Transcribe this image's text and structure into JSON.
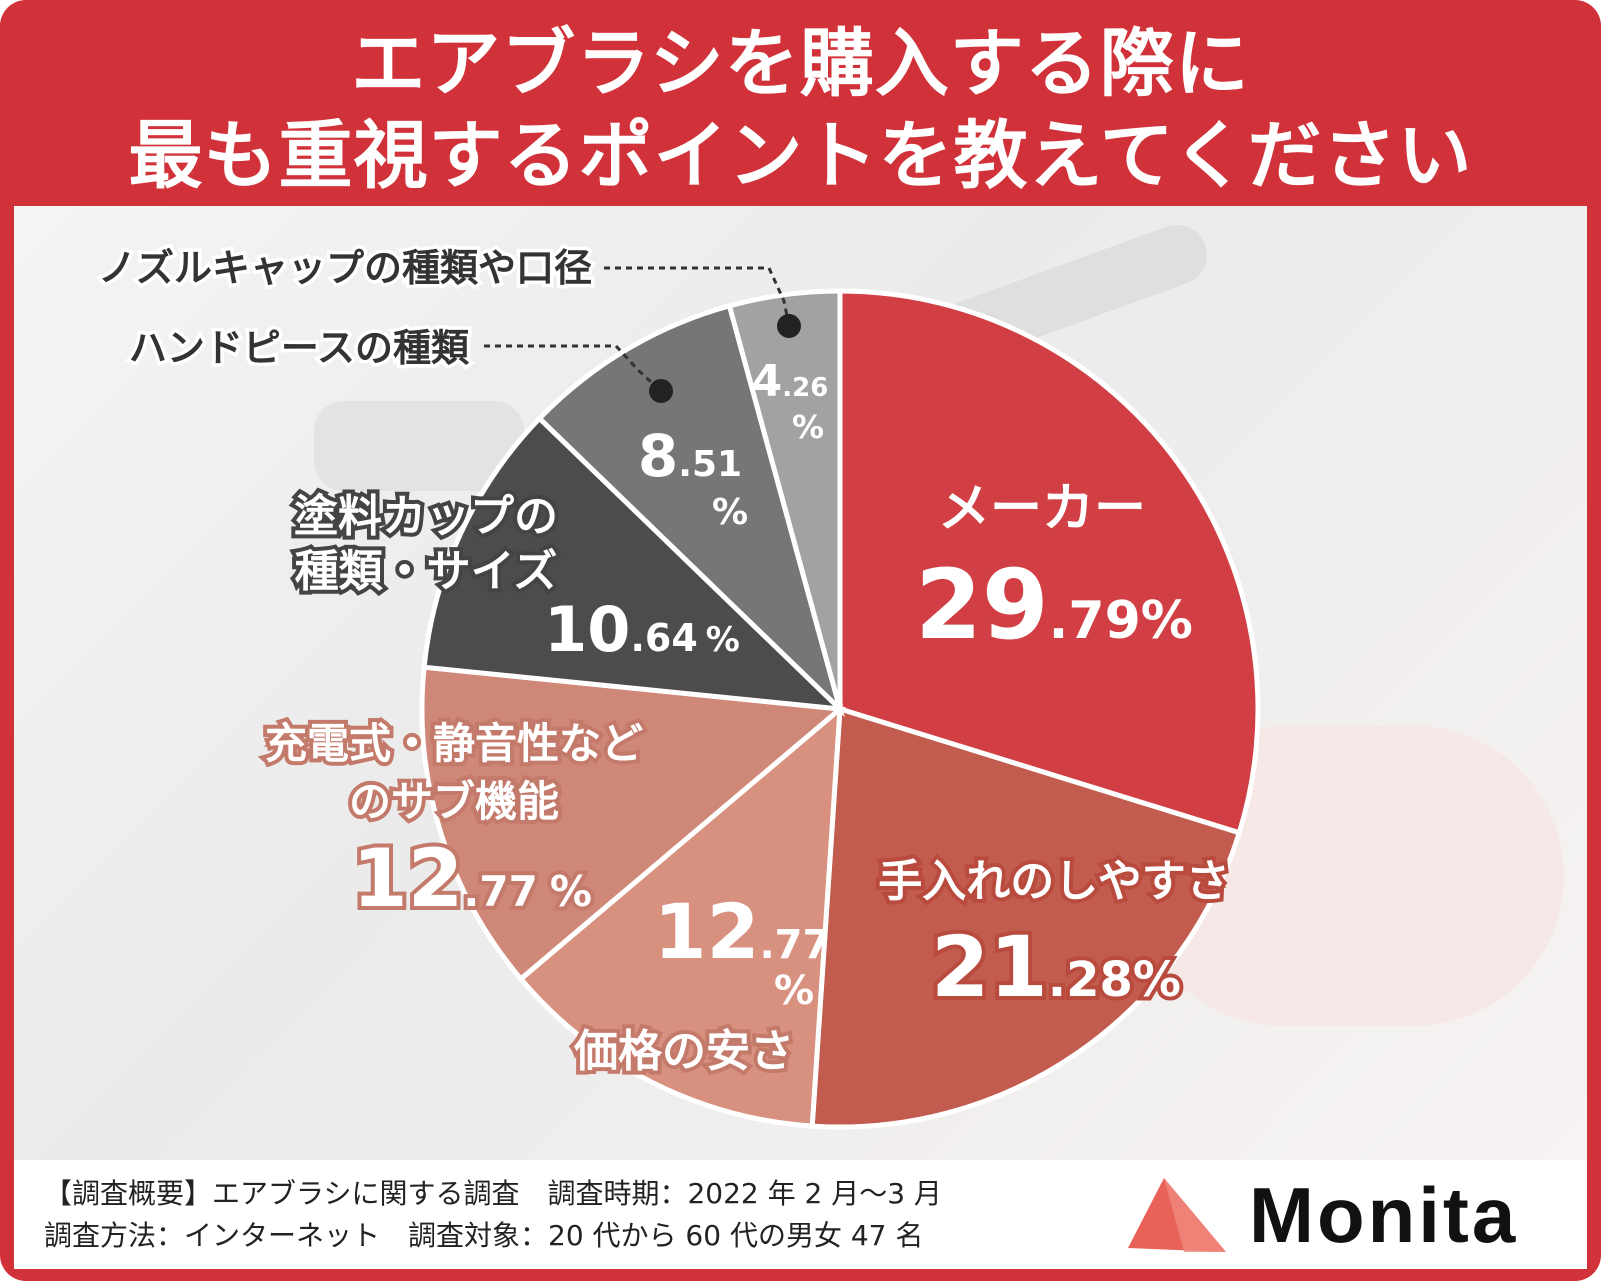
{
  "title": {
    "line1": "エアブラシを購入する際に",
    "line2": "最も重視するポイントを教えてください"
  },
  "chart_data": {
    "type": "pie",
    "title": "エアブラシを購入する際に最も重視するポイントを教えてください",
    "unit": "%",
    "slices": [
      {
        "label": "メーカー",
        "value": 29.79,
        "int": "29",
        "dec": ".79",
        "pct": "%",
        "color": "#d13f44"
      },
      {
        "label": "手入れのしやすさ",
        "value": 21.28,
        "int": "21",
        "dec": ".28",
        "pct": "%",
        "color": "#c25c4e"
      },
      {
        "label": "価格の安さ",
        "value": 12.77,
        "int": "12",
        "dec": ".77",
        "pct": "%",
        "color": "#d8907f"
      },
      {
        "label": "充電式・静音性などのサブ機能",
        "value": 12.77,
        "int": "12",
        "dec": ".77",
        "pct": "%",
        "color": "#cf8878"
      },
      {
        "label": "塗料カップの種類・サイズ",
        "value": 10.64,
        "int": "10",
        "dec": ".64",
        "pct": "%",
        "color": "#4e4b4d"
      },
      {
        "label": "ハンドピースの種類",
        "value": 8.51,
        "int": "8",
        "dec": ".51",
        "pct": "%",
        "color": "#787577"
      },
      {
        "label": "ノズルキャップの種類や口径",
        "value": 4.26,
        "int": "4",
        "dec": ".26",
        "pct": "%",
        "color": "#a3a1a2"
      }
    ]
  },
  "labels": {
    "maker": "メーカー",
    "care": "手入れのしやすさ",
    "price": "価格の安さ",
    "sub_line1": "充電式・静音性など",
    "sub_line2": "のサブ機能",
    "cup_line1": "塗料カップの",
    "cup_line2": "種類・サイズ",
    "handpiece": "ハンドピースの種類",
    "nozzle": "ノズルキャップの種類や口径"
  },
  "footer": {
    "line1": "【調査概要】エアブラシに関する調査　調査時期：2022 年 2 月〜3 月",
    "line2": "調査方法：インターネット　調査対象：20 代から 60 代の男女 47 名",
    "logo": "Monita"
  },
  "colors": {
    "frame": "#d13239",
    "logo_mark": "#e8625a"
  }
}
